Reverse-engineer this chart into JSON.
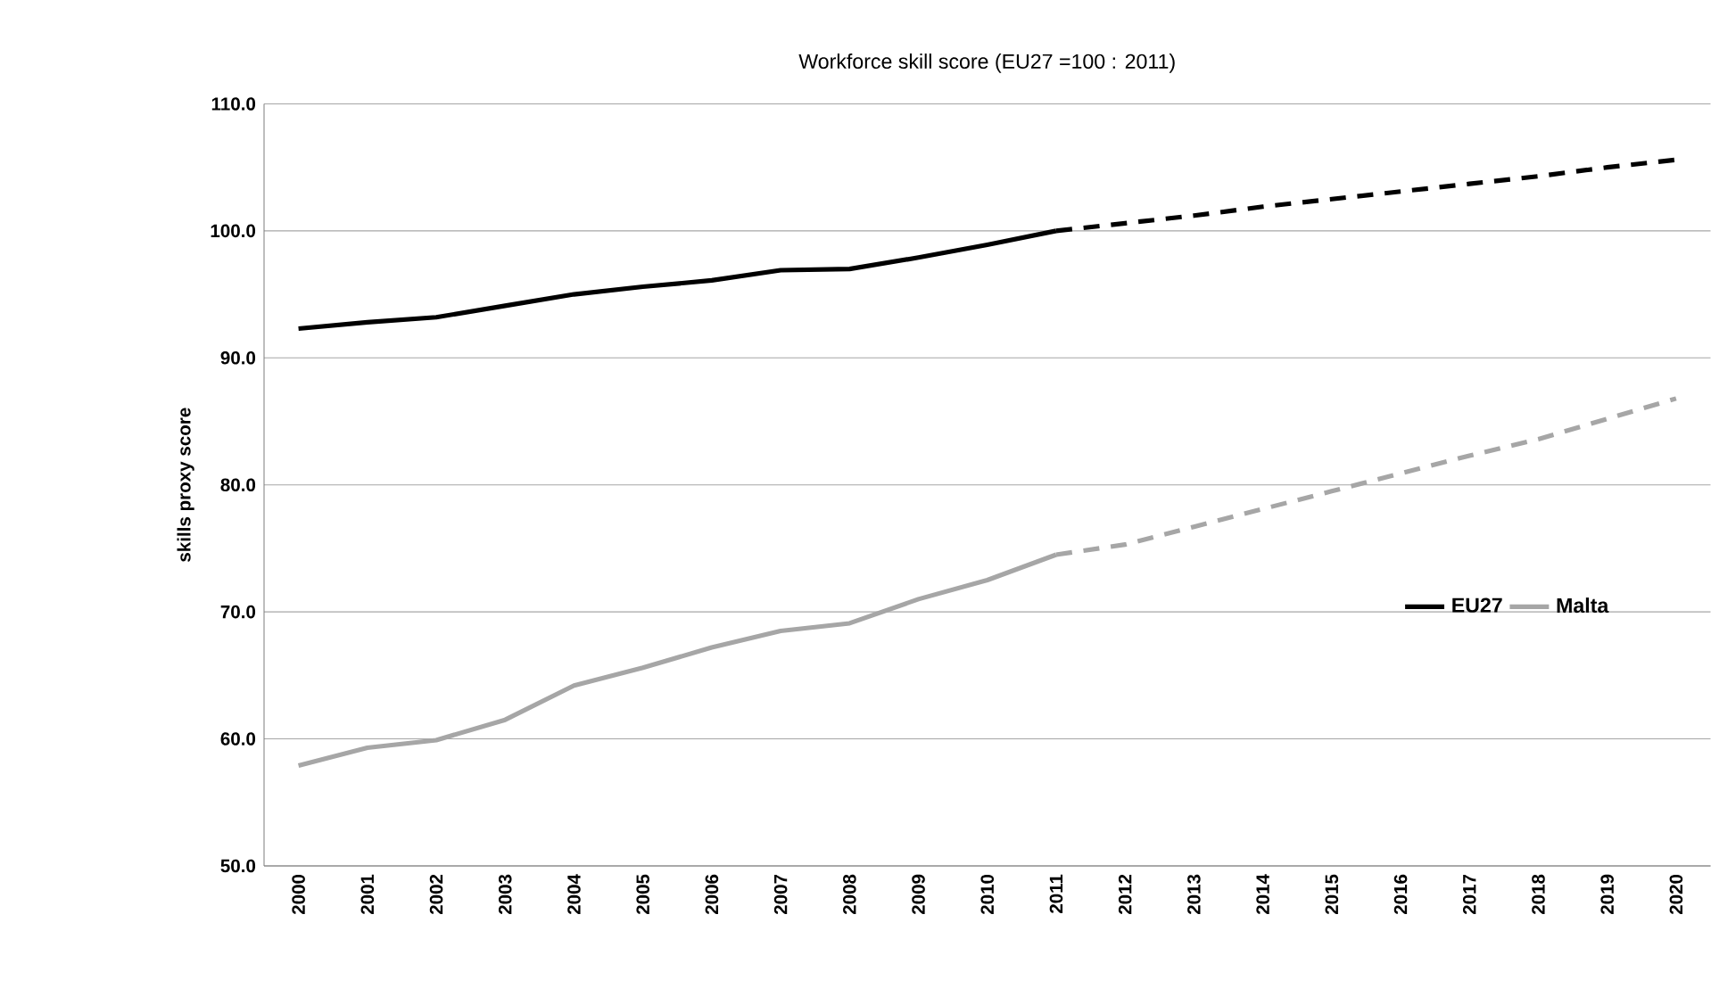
{
  "chart_data": {
    "type": "line",
    "title": "Workforce skill score (EU27 =100 : 2011)",
    "ylabel": "skills proxy score",
    "categories": [
      "2000",
      "2001",
      "2002",
      "2003",
      "2004",
      "2005",
      "2006",
      "2007",
      "2008",
      "2009",
      "2010",
      "2011",
      "2012",
      "2013",
      "2014",
      "2015",
      "2016",
      "2017",
      "2018",
      "2019",
      "2020"
    ],
    "series": [
      {
        "name": "EU27",
        "color": "#000000",
        "line_style": "solid",
        "values": [
          92.3,
          92.8,
          93.2,
          94.1,
          95.0,
          95.6,
          96.1,
          96.9,
          97.0,
          97.9,
          98.9,
          100.0,
          null,
          null,
          null,
          null,
          null,
          null,
          null,
          null,
          null
        ]
      },
      {
        "name": "Malta",
        "color": "#a6a6a6",
        "line_style": "solid",
        "values": [
          57.9,
          59.3,
          59.9,
          61.5,
          64.2,
          65.6,
          67.2,
          68.5,
          69.1,
          71.0,
          72.5,
          74.5,
          null,
          null,
          null,
          null,
          null,
          null,
          null,
          null,
          null
        ]
      },
      {
        "color": "#000000",
        "line_style": "dashed",
        "values": [
          null,
          null,
          null,
          null,
          null,
          null,
          null,
          null,
          null,
          null,
          null,
          100.0,
          100.6,
          101.2,
          101.9,
          102.5,
          103.1,
          103.7,
          104.3,
          105.0,
          105.6
        ]
      },
      {
        "color": "#a6a6a6",
        "line_style": "dashed",
        "values": [
          null,
          null,
          null,
          null,
          null,
          null,
          null,
          null,
          null,
          null,
          null,
          74.5,
          75.3,
          76.7,
          78.1,
          79.5,
          80.9,
          82.3,
          83.6,
          85.2,
          86.8
        ]
      }
    ],
    "ylim": [
      50,
      110
    ],
    "yticks": [
      {
        "value": 50,
        "label": "50.0"
      },
      {
        "value": 60,
        "label": "60.0"
      },
      {
        "value": 70,
        "label": "70.0"
      },
      {
        "value": 80,
        "label": "80.0"
      },
      {
        "value": 90,
        "label": "90.0"
      },
      {
        "value": 100,
        "label": "100.0"
      },
      {
        "value": 110,
        "label": "110.0"
      }
    ],
    "grid": "y",
    "legend": "right",
    "marker": "none"
  }
}
